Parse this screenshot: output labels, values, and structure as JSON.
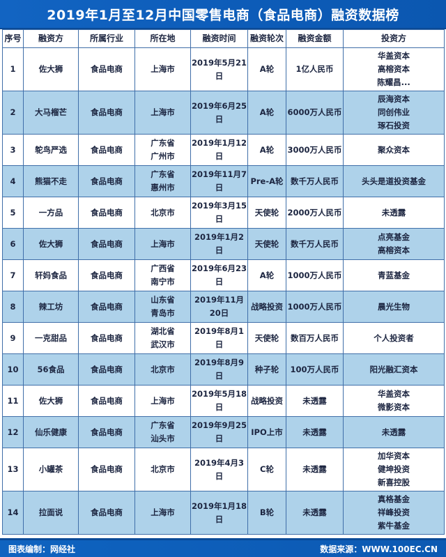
{
  "title": "2019年1月至12月中国零售电商（食品电商）融资数据榜",
  "table": {
    "headers": [
      "序号",
      "融资方",
      "所属行业",
      "所在地",
      "融资时间",
      "融资轮次",
      "融资金额",
      "投资方"
    ],
    "rows": [
      {
        "no": "1",
        "company": "佐大狮",
        "industry": "食品电商",
        "location": [
          "上海市"
        ],
        "date": "2019年5月21日",
        "round": "A轮",
        "amount": "1亿人民币",
        "investors": [
          "华盖资本",
          "高榕资本",
          "陈耀昌..."
        ]
      },
      {
        "no": "2",
        "company": "大马榴芒",
        "industry": "食品电商",
        "location": [
          "上海市"
        ],
        "date": "2019年6月25日",
        "round": "A轮",
        "amount": "6000万人民币",
        "investors": [
          "辰海资本",
          "同创伟业",
          "琢石投资"
        ]
      },
      {
        "no": "3",
        "company": "鸵鸟严选",
        "industry": "食品电商",
        "location": [
          "广东省",
          "广州市"
        ],
        "date": "2019年1月12日",
        "round": "A轮",
        "amount": "3000万人民币",
        "investors": [
          "聚众资本"
        ]
      },
      {
        "no": "4",
        "company": "熊猫不走",
        "industry": "食品电商",
        "location": [
          "广东省",
          "惠州市"
        ],
        "date": "2019年11月7日",
        "round": "Pre-A轮",
        "amount": "数千万人民币",
        "investors": [
          "头头是道投资基金"
        ]
      },
      {
        "no": "5",
        "company": "一方品",
        "industry": "食品电商",
        "location": [
          "北京市"
        ],
        "date": "2019年3月15日",
        "round": "天使轮",
        "amount": "2000万人民币",
        "investors": [
          "未透露"
        ]
      },
      {
        "no": "6",
        "company": "佐大狮",
        "industry": "食品电商",
        "location": [
          "上海市"
        ],
        "date": "2019年1月2日",
        "round": "天使轮",
        "amount": "数千万人民币",
        "investors": [
          "点亮基金",
          "高榕资本"
        ]
      },
      {
        "no": "7",
        "company": "轩妈食品",
        "industry": "食品电商",
        "location": [
          "广西省",
          "南宁市"
        ],
        "date": "2019年6月23日",
        "round": "A轮",
        "amount": "1000万人民币",
        "investors": [
          "青蓝基金"
        ]
      },
      {
        "no": "8",
        "company": "辣工坊",
        "industry": "食品电商",
        "location": [
          "山东省",
          "青岛市"
        ],
        "date": "2019年11月20日",
        "round": "战略投资",
        "amount": "1000万人民币",
        "investors": [
          "晨光生物"
        ]
      },
      {
        "no": "9",
        "company": "一克甜品",
        "industry": "食品电商",
        "location": [
          "湖北省",
          "武汉市"
        ],
        "date": "2019年8月1日",
        "round": "天使轮",
        "amount": "数百万人民币",
        "investors": [
          "个人投资者"
        ]
      },
      {
        "no": "10",
        "company": "56食品",
        "industry": "食品电商",
        "location": [
          "北京市"
        ],
        "date": "2019年8月9日",
        "round": "种子轮",
        "amount": "100万人民币",
        "investors": [
          "阳光融汇资本"
        ]
      },
      {
        "no": "11",
        "company": "佐大狮",
        "industry": "食品电商",
        "location": [
          "上海市"
        ],
        "date": "2019年5月18日",
        "round": "战略投资",
        "amount": "未透露",
        "investors": [
          "华盖资本",
          "微影资本"
        ]
      },
      {
        "no": "12",
        "company": "仙乐健康",
        "industry": "食品电商",
        "location": [
          "广东省",
          "汕头市"
        ],
        "date": "2019年9月25日",
        "round": "IPO上市",
        "amount": "未透露",
        "investors": [
          "未透露"
        ]
      },
      {
        "no": "13",
        "company": "小罐茶",
        "industry": "食品电商",
        "location": [
          "北京市"
        ],
        "date": "2019年4月3日",
        "round": "C轮",
        "amount": "未透露",
        "investors": [
          "加华资本",
          "健坤投资",
          "新喜控股"
        ]
      },
      {
        "no": "14",
        "company": "拉面说",
        "industry": "食品电商",
        "location": [
          "上海市"
        ],
        "date": "2019年1月18日",
        "round": "B轮",
        "amount": "未透露",
        "investors": [
          "真格基金",
          "祥峰投资",
          "紫牛基金"
        ]
      }
    ]
  },
  "footer": {
    "left": "图表编制：网经社",
    "right": "数据来源：WWW.100EC.CN"
  },
  "colors": {
    "banner_blue": "#0d5cb8",
    "row_alt_blue": "#aed2ea",
    "grid_blue": "#3f6ea8",
    "text_dark": "#1c2540"
  }
}
